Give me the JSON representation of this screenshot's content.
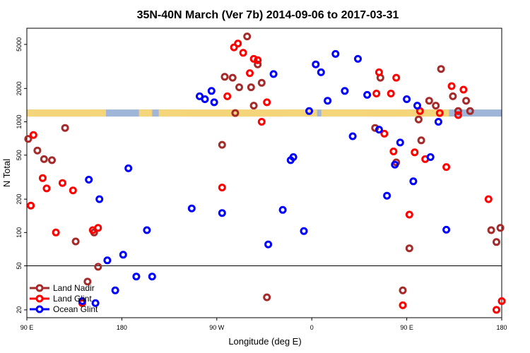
{
  "chart_data": {
    "type": "scatter",
    "title": "35N-40N March (Ver 7b)   2014-09-06 to 2017-03-31",
    "xlabel": "Longitude (deg E)",
    "ylabel": "N Total",
    "x_scale": "longitude, 90E to 90E wrapping through 180 and 0",
    "y_scale": "log",
    "xlim_east_of_90E_deg": [
      0,
      360
    ],
    "ylim": [
      17,
      7000
    ],
    "x_ticks": [
      {
        "lon": 90,
        "label": "90 E"
      },
      {
        "lon": 180,
        "label": "180"
      },
      {
        "lon": -90,
        "label": "90 W"
      },
      {
        "lon": 0,
        "label": "0"
      },
      {
        "lon": 90,
        "label": "90 E"
      },
      {
        "lon": 180,
        "label": "180"
      }
    ],
    "y_ticks": [
      20,
      50,
      100,
      200,
      500,
      1000,
      2000,
      5000
    ],
    "reference_line": 50,
    "map_strip_y": 1200,
    "colors": {
      "land_nadir": "#a52a2a",
      "land_glint": "#ff0000",
      "ocean_glint": "#0000ff",
      "map_land": "#f5d57a",
      "map_ocean": "#9fb6d8"
    },
    "legend": {
      "position": "bottom-left"
    },
    "series": [
      {
        "name": "Land Nadir",
        "color": "#a52a2a",
        "points": [
          [
            91,
            700
          ],
          [
            98,
            550
          ],
          [
            103,
            460
          ],
          [
            109,
            450
          ],
          [
            119,
            880
          ],
          [
            127,
            83
          ],
          [
            136,
            36
          ],
          [
            141,
            100
          ],
          [
            144,
            49
          ],
          [
            -122,
            620
          ],
          [
            -120,
            2550
          ],
          [
            -114,
            2500
          ],
          [
            -112,
            1200
          ],
          [
            -109,
            2050
          ],
          [
            -103,
            5900
          ],
          [
            -100,
            2050
          ],
          [
            -98,
            1400
          ],
          [
            -95,
            3300
          ],
          [
            -92,
            2250
          ],
          [
            -88,
            26
          ],
          [
            -6,
            880
          ],
          [
            -2,
            2500
          ],
          [
            10,
            430
          ],
          [
            15,
            30
          ],
          [
            20,
            72
          ],
          [
            27,
            1050
          ],
          [
            29,
            680
          ],
          [
            35,
            1550
          ],
          [
            40,
            1400
          ],
          [
            44,
            3000
          ],
          [
            53,
            1700
          ],
          [
            57,
            1250
          ],
          [
            63,
            1550
          ],
          [
            66,
            1250
          ],
          [
            82,
            105
          ],
          [
            86,
            82
          ],
          [
            89,
            110
          ],
          [
            95,
            215
          ],
          [
            101,
            680
          ],
          [
            106,
            550
          ],
          [
            111,
            460
          ],
          [
            116,
            450
          ],
          [
            126,
            880
          ],
          [
            136,
            83
          ],
          [
            145,
            36
          ],
          [
            149,
            100
          ],
          [
            152,
            49
          ]
        ]
      },
      {
        "name": "Land Glint",
        "color": "#ff0000",
        "points": [
          [
            93,
            175
          ],
          [
            95,
            760
          ],
          [
            102,
            310
          ],
          [
            105,
            250
          ],
          [
            112,
            100
          ],
          [
            117,
            280
          ],
          [
            125,
            240
          ],
          [
            132,
            23
          ],
          [
            140,
            105
          ],
          [
            144,
            110
          ],
          [
            -122,
            255
          ],
          [
            -118,
            1700
          ],
          [
            -113,
            4700
          ],
          [
            -110,
            5100
          ],
          [
            -106,
            4200
          ],
          [
            -101,
            2750
          ],
          [
            -98,
            3700
          ],
          [
            -95,
            3600
          ],
          [
            -92,
            1000
          ],
          [
            -88,
            1500
          ],
          [
            -5,
            1800
          ],
          [
            -3,
            2800
          ],
          [
            1,
            780
          ],
          [
            6,
            1800
          ],
          [
            8,
            540
          ],
          [
            10,
            2500
          ],
          [
            15,
            22
          ],
          [
            20,
            145
          ],
          [
            24,
            530
          ],
          [
            28,
            1250
          ],
          [
            32,
            460
          ],
          [
            43,
            1200
          ],
          [
            48,
            390
          ],
          [
            52,
            2100
          ],
          [
            57,
            1150
          ],
          [
            61,
            1950
          ],
          [
            80,
            200
          ],
          [
            86,
            20
          ],
          [
            90,
            24
          ],
          [
            95,
            390
          ],
          [
            101,
            175
          ],
          [
            102,
            760
          ],
          [
            109,
            310
          ],
          [
            112,
            250
          ],
          [
            120,
            100
          ],
          [
            125,
            280
          ],
          [
            133,
            240
          ],
          [
            148,
            23
          ],
          [
            150,
            105
          ],
          [
            152,
            110
          ]
        ]
      },
      {
        "name": "Ocean Glint",
        "color": "#0000ff",
        "points": [
          [
            132,
            24
          ],
          [
            137,
            300
          ],
          [
            142,
            23
          ],
          [
            145,
            200
          ],
          [
            151,
            56
          ],
          [
            157,
            30
          ],
          [
            163,
            63
          ],
          [
            167,
            380
          ],
          [
            173,
            40
          ],
          [
            181,
            105
          ],
          [
            -175,
            850
          ],
          [
            -170,
            300
          ],
          [
            -160,
            160
          ],
          [
            -155,
            270
          ],
          [
            -152,
            1350
          ],
          [
            -145,
            165
          ],
          [
            -139,
            1700
          ],
          [
            -135,
            1600
          ],
          [
            -130,
            1900
          ],
          [
            -128,
            1500
          ],
          [
            -122,
            150
          ],
          [
            -87,
            78
          ],
          [
            -83,
            2700
          ],
          [
            -76,
            160
          ],
          [
            -70,
            450
          ],
          [
            -68,
            480
          ],
          [
            -60,
            103
          ],
          [
            -56,
            1250
          ],
          [
            -51,
            3300
          ],
          [
            -47,
            2800
          ],
          [
            -42,
            1550
          ],
          [
            -36,
            4100
          ],
          [
            -29,
            1900
          ],
          [
            -23,
            740
          ],
          [
            -19,
            3700
          ],
          [
            -12,
            1750
          ],
          [
            -3,
            850
          ],
          [
            3,
            215
          ],
          [
            9,
            410
          ],
          [
            13,
            650
          ],
          [
            18,
            1600
          ],
          [
            23,
            290
          ],
          [
            26,
            1400
          ],
          [
            36,
            480
          ],
          [
            42,
            1000
          ],
          [
            48,
            106
          ],
          [
            125,
            24
          ],
          [
            144,
            300
          ],
          [
            149,
            200
          ],
          [
            159,
            20
          ],
          [
            168,
            56
          ],
          [
            172,
            30
          ],
          [
            175,
            63
          ],
          [
            180,
            380
          ],
          [
            185,
            40
          ]
        ]
      }
    ]
  }
}
